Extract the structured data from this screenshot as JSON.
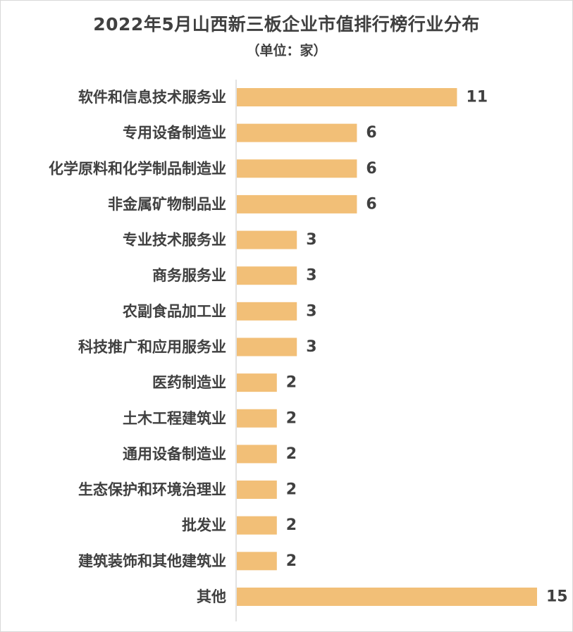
{
  "chart_data": {
    "type": "bar",
    "orientation": "horizontal",
    "title": "2022年5月山西新三板企业市值排行榜行业分布",
    "subtitle": "（单位：家）",
    "xlabel": "",
    "ylabel": "",
    "grid": false,
    "legend": "none",
    "bar_color": "#f2bf77",
    "categories": [
      "软件和信息技术服务业",
      "专用设备制造业",
      "化学原料和化学制品制造业",
      "非金属矿物制品业",
      "专业技术服务业",
      "商务服务业",
      "农副食品加工业",
      "科技推广和应用服务业",
      "医药制造业",
      "土木工程建筑业",
      "通用设备制造业",
      "生态保护和环境治理业",
      "批发业",
      "建筑装饰和其他建筑业",
      "其他"
    ],
    "values": [
      11,
      6,
      6,
      6,
      3,
      3,
      3,
      3,
      2,
      2,
      2,
      2,
      2,
      2,
      15
    ],
    "xlim": [
      0,
      15
    ]
  }
}
